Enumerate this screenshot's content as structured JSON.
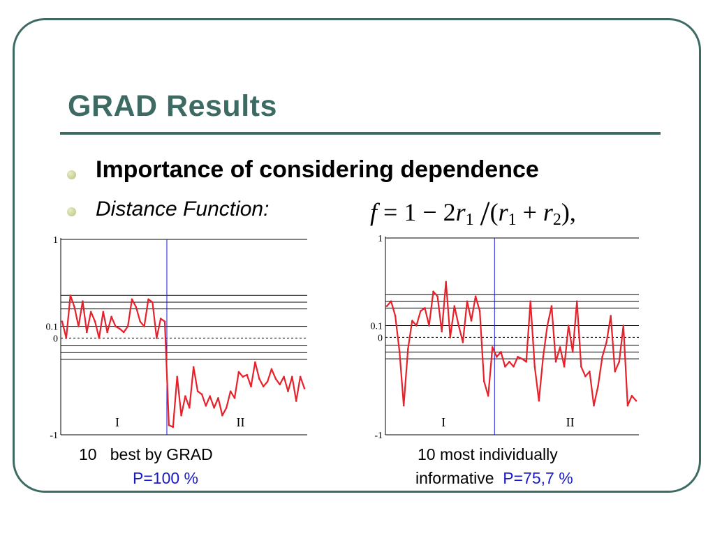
{
  "slide": {
    "title": "GRAD Results",
    "bullets": [
      "Importance of considering dependence",
      "Distance Function:"
    ],
    "formula": {
      "lhs": "f",
      "equals": "=",
      "one": "1",
      "minus": "−",
      "two": "2",
      "r": "r",
      "sub1": "1",
      "sub2": "2",
      "slash": "/",
      "open": "(",
      "plus": "+",
      "close": "),"
    },
    "captions": {
      "left_num": "10",
      "left_text": "best by GRAD",
      "left_p": "P=100 %",
      "right_line1": "10 most individually",
      "right_line2": "informative",
      "right_p": "P=75,7 %"
    },
    "colors": {
      "accent": "#3d6b63",
      "series": "#e8202a",
      "p_value": "#1a1acc"
    }
  },
  "chart_data": [
    {
      "type": "line",
      "ylim": [
        -1,
        1
      ],
      "y_ticks": [
        "1",
        "0.1",
        "0",
        "-1"
      ],
      "region_labels": [
        "I",
        "II"
      ],
      "reference_lines": [
        0.42,
        0.35,
        0.28,
        0.1,
        0.0,
        -0.08,
        -0.15,
        -0.22
      ],
      "x_count": 60,
      "divider_index": 19,
      "values": [
        0.15,
        0.0,
        0.42,
        0.3,
        0.1,
        0.36,
        0.05,
        0.25,
        0.15,
        0.0,
        0.25,
        0.05,
        0.2,
        0.1,
        0.08,
        0.05,
        0.1,
        0.38,
        0.3,
        0.15,
        0.1,
        0.38,
        0.35,
        0.0,
        0.18,
        0.15,
        -0.9,
        -0.92,
        -0.4,
        -0.8,
        -0.6,
        -0.72,
        -0.3,
        -0.55,
        -0.58,
        -0.7,
        -0.6,
        -0.72,
        -0.62,
        -0.8,
        -0.72,
        -0.55,
        -0.62,
        -0.35,
        -0.4,
        -0.38,
        -0.5,
        -0.25,
        -0.42,
        -0.5,
        -0.45,
        -0.32,
        -0.42,
        -0.48,
        -0.4,
        -0.55,
        -0.4,
        -0.65,
        -0.4,
        -0.52
      ]
    },
    {
      "type": "line",
      "ylim": [
        -1,
        1
      ],
      "y_ticks": [
        "1",
        "0.1",
        "0",
        "-1"
      ],
      "region_labels": [
        "I",
        "II"
      ],
      "reference_lines": [
        0.42,
        0.35,
        0.28,
        0.1,
        0.0,
        -0.08,
        -0.15,
        -0.22
      ],
      "x_count": 60,
      "divider_index": 19,
      "values": [
        0.3,
        0.35,
        0.2,
        -0.15,
        -0.7,
        -0.12,
        0.15,
        0.1,
        0.25,
        0.28,
        0.1,
        0.45,
        0.4,
        0.05,
        0.55,
        0.0,
        0.3,
        0.1,
        -0.05,
        0.35,
        0.15,
        0.4,
        0.25,
        -0.45,
        -0.6,
        -0.1,
        -0.2,
        -0.15,
        -0.3,
        -0.25,
        -0.3,
        -0.2,
        -0.22,
        -0.25,
        0.35,
        -0.3,
        -0.65,
        -0.2,
        0.1,
        0.3,
        -0.25,
        -0.1,
        -0.3,
        0.1,
        -0.15,
        0.35,
        -0.3,
        -0.4,
        -0.35,
        -0.7,
        -0.5,
        -0.2,
        -0.05,
        0.2,
        -0.35,
        -0.25,
        0.1,
        -0.7,
        -0.6,
        -0.65
      ]
    }
  ]
}
